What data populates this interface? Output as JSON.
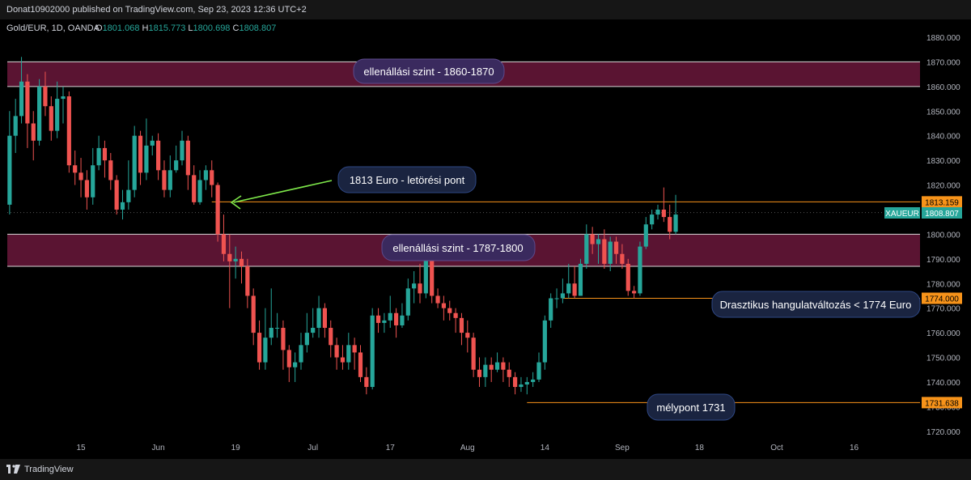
{
  "header": {
    "published_text": "Donat10902000 published on TradingView.com, Sep 23, 2023 12:36 UTC+2"
  },
  "footer": {
    "brand": "TradingView"
  },
  "symbol_line": {
    "name": "Gold/EUR, 1D, OANDA",
    "o_label": "O",
    "o_value": "1801.068",
    "h_label": "H",
    "h_value": "1815.773",
    "l_label": "L",
    "l_value": "1800.698",
    "c_label": "C",
    "c_value": "1808.807"
  },
  "colors": {
    "up": "#26a69a",
    "down": "#ef5350",
    "zone_fill": "#5a1432",
    "orange": "#f7931a",
    "arrow": "#7ee84a",
    "background": "#000000"
  },
  "chart_data": {
    "type": "candlestick",
    "title": "",
    "ylim": [
      1720,
      1883
    ],
    "y_ticks": [
      1720,
      1730,
      1740,
      1750,
      1760,
      1770,
      1780,
      1790,
      1800,
      1810,
      1820,
      1830,
      1840,
      1850,
      1860,
      1870,
      1880
    ],
    "x_ticks": [
      {
        "label": "15",
        "index": 13
      },
      {
        "label": "Jun",
        "index": 26
      },
      {
        "label": "19",
        "index": 39
      },
      {
        "label": "Jul",
        "index": 52
      },
      {
        "label": "17",
        "index": 65
      },
      {
        "label": "Aug",
        "index": 78
      },
      {
        "label": "14",
        "index": 91
      },
      {
        "label": "Sep",
        "index": 104
      },
      {
        "label": "18",
        "index": 117
      },
      {
        "label": "Oct",
        "index": 130
      },
      {
        "label": "16",
        "index": 143
      }
    ],
    "x_count": 155,
    "candles": [
      [
        1,
        1812,
        1840,
        1850,
        1808
      ],
      [
        2,
        1840,
        1848,
        1855,
        1833
      ],
      [
        3,
        1848,
        1862,
        1872,
        1845
      ],
      [
        4,
        1862,
        1845,
        1865,
        1835
      ],
      [
        5,
        1845,
        1838,
        1850,
        1830
      ],
      [
        6,
        1838,
        1860,
        1863,
        1836
      ],
      [
        7,
        1860,
        1852,
        1866,
        1848
      ],
      [
        8,
        1852,
        1842,
        1856,
        1838
      ],
      [
        9,
        1842,
        1855,
        1862,
        1839
      ],
      [
        10,
        1855,
        1856,
        1860,
        1845
      ],
      [
        11,
        1856,
        1828,
        1858,
        1825
      ],
      [
        12,
        1828,
        1825,
        1834,
        1820
      ],
      [
        13,
        1825,
        1822,
        1831,
        1815
      ],
      [
        14,
        1822,
        1815,
        1826,
        1810
      ],
      [
        15,
        1815,
        1828,
        1835,
        1812
      ],
      [
        16,
        1828,
        1835,
        1840,
        1826
      ],
      [
        17,
        1835,
        1830,
        1838,
        1823
      ],
      [
        18,
        1830,
        1822,
        1833,
        1818
      ],
      [
        19,
        1822,
        1810,
        1824,
        1808
      ],
      [
        20,
        1810,
        1813,
        1818,
        1806
      ],
      [
        21,
        1813,
        1818,
        1830,
        1810
      ],
      [
        22,
        1818,
        1840,
        1844,
        1815
      ],
      [
        23,
        1840,
        1825,
        1842,
        1820
      ],
      [
        24,
        1825,
        1836,
        1847,
        1822
      ],
      [
        25,
        1836,
        1838,
        1840,
        1832
      ],
      [
        26,
        1838,
        1826,
        1841,
        1822
      ],
      [
        27,
        1826,
        1818,
        1830,
        1815
      ],
      [
        28,
        1818,
        1826,
        1832,
        1815
      ],
      [
        29,
        1826,
        1830,
        1836,
        1825
      ],
      [
        30,
        1830,
        1838,
        1842,
        1828
      ],
      [
        31,
        1838,
        1824,
        1840,
        1818
      ],
      [
        32,
        1824,
        1813,
        1828,
        1812
      ],
      [
        33,
        1813,
        1822,
        1826,
        1812
      ],
      [
        34,
        1822,
        1826,
        1828,
        1818
      ],
      [
        35,
        1826,
        1820,
        1830,
        1815
      ],
      [
        36,
        1820,
        1800,
        1821,
        1797
      ],
      [
        37,
        1800,
        1792,
        1808,
        1789
      ],
      [
        38,
        1792,
        1789,
        1800,
        1770
      ],
      [
        39,
        1789,
        1790,
        1795,
        1782
      ],
      [
        40,
        1790,
        1787,
        1793,
        1780
      ],
      [
        41,
        1787,
        1775,
        1790,
        1770
      ],
      [
        42,
        1775,
        1760,
        1778,
        1755
      ],
      [
        43,
        1760,
        1748,
        1765,
        1745
      ],
      [
        44,
        1748,
        1758,
        1770,
        1745
      ],
      [
        45,
        1758,
        1762,
        1778,
        1755
      ],
      [
        46,
        1762,
        1762,
        1768,
        1758
      ],
      [
        47,
        1762,
        1753,
        1765,
        1745
      ],
      [
        48,
        1753,
        1746,
        1755,
        1740
      ],
      [
        49,
        1746,
        1748,
        1752,
        1740
      ],
      [
        50,
        1748,
        1755,
        1760,
        1745
      ],
      [
        51,
        1755,
        1760,
        1768,
        1752
      ],
      [
        52,
        1760,
        1762,
        1770,
        1758
      ],
      [
        53,
        1762,
        1770,
        1775,
        1758
      ],
      [
        54,
        1770,
        1762,
        1772,
        1758
      ],
      [
        55,
        1762,
        1755,
        1765,
        1750
      ],
      [
        56,
        1755,
        1750,
        1758,
        1745
      ],
      [
        57,
        1750,
        1748,
        1755,
        1745
      ],
      [
        58,
        1748,
        1755,
        1760,
        1745
      ],
      [
        59,
        1755,
        1752,
        1758,
        1745
      ],
      [
        60,
        1752,
        1742,
        1755,
        1740
      ],
      [
        61,
        1742,
        1738,
        1746,
        1735
      ],
      [
        62,
        1738,
        1767,
        1770,
        1737
      ],
      [
        63,
        1767,
        1764,
        1770,
        1760
      ],
      [
        64,
        1764,
        1765,
        1768,
        1760
      ],
      [
        65,
        1765,
        1768,
        1775,
        1762
      ],
      [
        66,
        1768,
        1763,
        1770,
        1758
      ],
      [
        67,
        1763,
        1767,
        1772,
        1762
      ],
      [
        68,
        1767,
        1778,
        1782,
        1765
      ],
      [
        69,
        1778,
        1780,
        1785,
        1772
      ],
      [
        70,
        1780,
        1776,
        1788,
        1772
      ],
      [
        71,
        1776,
        1790,
        1792,
        1774
      ],
      [
        72,
        1790,
        1775,
        1792,
        1772
      ],
      [
        73,
        1775,
        1772,
        1778,
        1770
      ],
      [
        74,
        1772,
        1770,
        1775,
        1765
      ],
      [
        75,
        1770,
        1768,
        1773,
        1765
      ],
      [
        76,
        1768,
        1766,
        1770,
        1760
      ],
      [
        77,
        1766,
        1760,
        1768,
        1755
      ],
      [
        78,
        1760,
        1758,
        1765,
        1752
      ],
      [
        79,
        1758,
        1745,
        1760,
        1742
      ],
      [
        80,
        1745,
        1742,
        1750,
        1738
      ],
      [
        81,
        1742,
        1747,
        1750,
        1738
      ],
      [
        82,
        1747,
        1745,
        1750,
        1740
      ],
      [
        83,
        1745,
        1748,
        1752,
        1744
      ],
      [
        84,
        1748,
        1745,
        1750,
        1740
      ],
      [
        85,
        1745,
        1742,
        1748,
        1738
      ],
      [
        86,
        1742,
        1738,
        1744,
        1735
      ],
      [
        87,
        1738,
        1739,
        1742,
        1736
      ],
      [
        88,
        1739,
        1740,
        1742,
        1735
      ],
      [
        89,
        1740,
        1741,
        1744,
        1738
      ],
      [
        90,
        1741,
        1748,
        1752,
        1740
      ],
      [
        91,
        1748,
        1765,
        1767,
        1745
      ],
      [
        92,
        1765,
        1774,
        1776,
        1762
      ],
      [
        93,
        1774,
        1774,
        1778,
        1770
      ],
      [
        94,
        1774,
        1776,
        1782,
        1772
      ],
      [
        95,
        1776,
        1780,
        1788,
        1774
      ],
      [
        96,
        1780,
        1775,
        1787,
        1774
      ],
      [
        97,
        1775,
        1788,
        1790,
        1775
      ],
      [
        98,
        1788,
        1800,
        1804,
        1786
      ],
      [
        99,
        1800,
        1796,
        1803,
        1792
      ],
      [
        100,
        1796,
        1798,
        1800,
        1788
      ],
      [
        101,
        1798,
        1788,
        1802,
        1786
      ],
      [
        102,
        1788,
        1797,
        1799,
        1785
      ],
      [
        103,
        1797,
        1792,
        1799,
        1788
      ],
      [
        104,
        1792,
        1788,
        1796,
        1786
      ],
      [
        105,
        1788,
        1777,
        1790,
        1775
      ],
      [
        106,
        1777,
        1776,
        1779,
        1774
      ],
      [
        107,
        1776,
        1795,
        1797,
        1775
      ],
      [
        108,
        1795,
        1804,
        1807,
        1794
      ],
      [
        109,
        1804,
        1808,
        1810,
        1802
      ],
      [
        110,
        1808,
        1810,
        1812,
        1806
      ],
      [
        111,
        1810,
        1807,
        1819,
        1805
      ],
      [
        112,
        1807,
        1801,
        1812,
        1798
      ],
      [
        113,
        1801,
        1808,
        1816,
        1800
      ]
    ],
    "zones": [
      {
        "low": 1860,
        "high": 1870,
        "label": "ellenállási szint - 1860-1870"
      },
      {
        "low": 1787,
        "high": 1800,
        "label": "ellenállási szint - 1787-1800"
      }
    ],
    "levels": [
      {
        "value": 1813.159,
        "label": "1813.159",
        "from": 35
      },
      {
        "value": 1774.0,
        "label": "1774.000",
        "from": 94
      },
      {
        "value": 1731.638,
        "label": "1731.638",
        "from": 88
      }
    ],
    "current_price": {
      "symbol": "XAUEUR",
      "value": "1808.807"
    },
    "annotations": {
      "breakout": "1813 Euro - letörési pont",
      "sentiment": "Drasztikus hangulatváltozás < 1774 Euro",
      "low": "mélypont 1731"
    }
  }
}
